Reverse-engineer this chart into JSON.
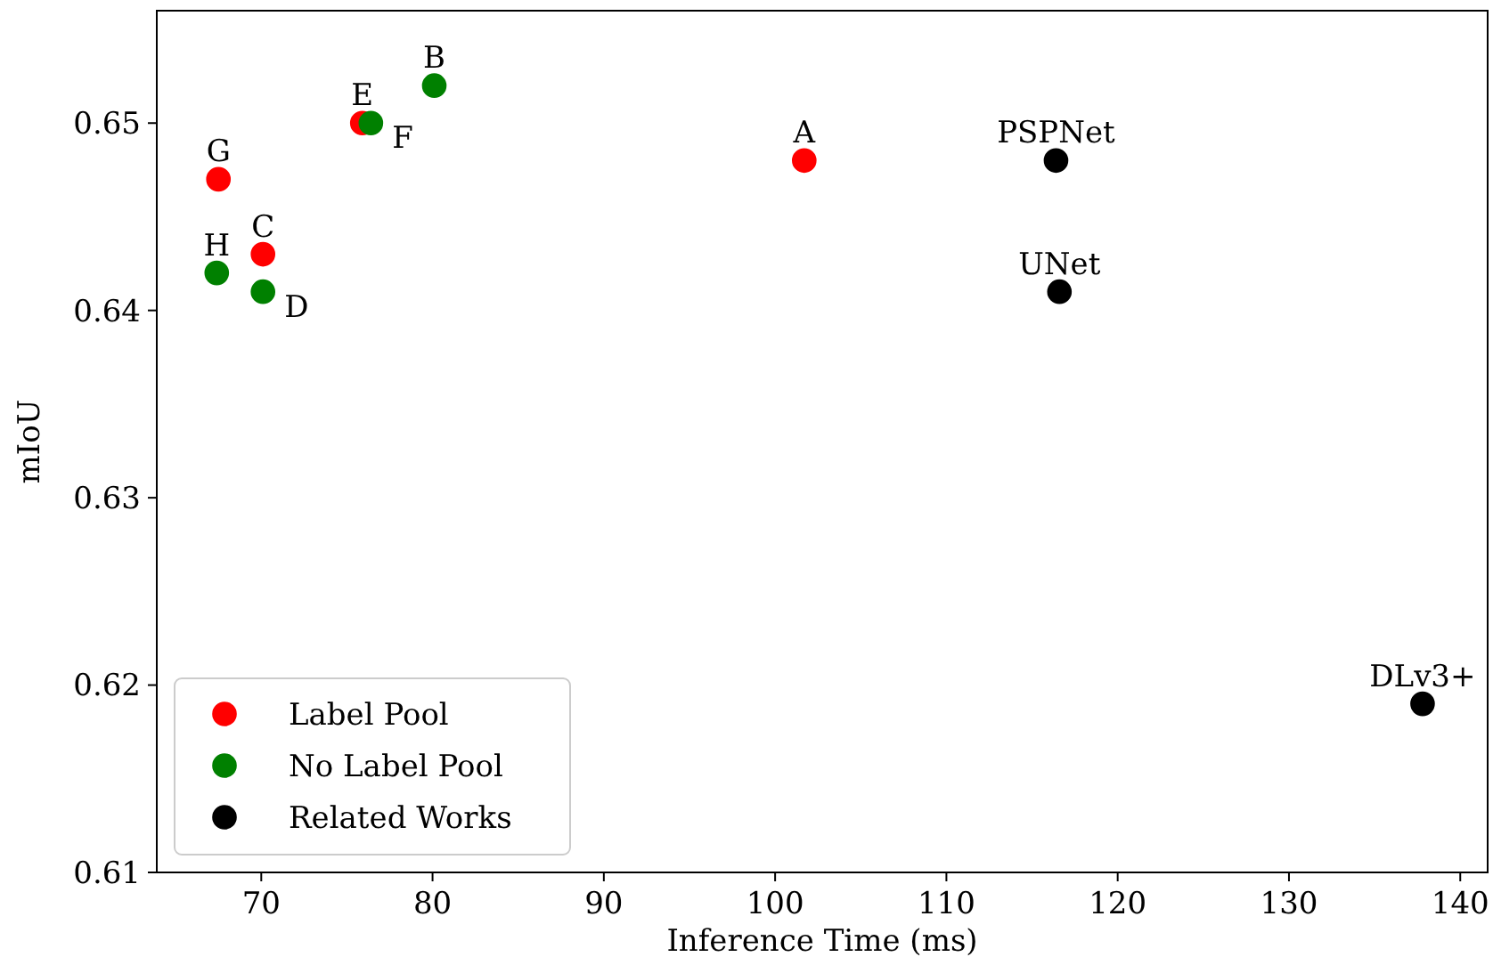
{
  "chart_data": {
    "type": "scatter",
    "xlabel": "Inference Time (ms)",
    "ylabel": "mIoU",
    "xlim": [
      63.9,
      141.6
    ],
    "ylim": [
      0.61,
      0.656
    ],
    "xticks": [
      70,
      80,
      90,
      100,
      110,
      120,
      130,
      140
    ],
    "yticks": [
      0.61,
      0.62,
      0.63,
      0.64,
      0.65
    ],
    "grid": false,
    "legend": "bottom left",
    "marker": "circle",
    "series": [
      {
        "name": "Label Pool",
        "color": "#ff0000",
        "x": [
          101.7,
          70.1,
          75.9,
          67.5
        ],
        "values": [
          0.648,
          0.643,
          0.65,
          0.647
        ]
      },
      {
        "name": "No Label Pool",
        "color": "#008000",
        "x": [
          80.1,
          70.1,
          76.4,
          67.4
        ],
        "values": [
          0.652,
          0.641,
          0.65,
          0.642
        ]
      },
      {
        "name": "Related Works",
        "color": "#000000",
        "x": [
          116.4,
          116.6,
          137.8
        ],
        "values": [
          0.648,
          0.641,
          0.619
        ]
      }
    ],
    "annotations": [
      {
        "text": "A",
        "x": 101.7,
        "y": 0.648
      },
      {
        "text": "B",
        "x": 80.1,
        "y": 0.652
      },
      {
        "text": "C",
        "x": 70.1,
        "y": 0.643
      },
      {
        "text": "D",
        "x": 70.1,
        "y": 0.641
      },
      {
        "text": "E",
        "x": 75.9,
        "y": 0.65
      },
      {
        "text": "F",
        "x": 76.4,
        "y": 0.65
      },
      {
        "text": "G",
        "x": 67.5,
        "y": 0.647
      },
      {
        "text": "H",
        "x": 67.4,
        "y": 0.642
      },
      {
        "text": "PSPNet",
        "x": 116.4,
        "y": 0.648
      },
      {
        "text": "UNet",
        "x": 116.6,
        "y": 0.641
      },
      {
        "text": "DLv3+",
        "x": 137.8,
        "y": 0.619
      }
    ]
  }
}
